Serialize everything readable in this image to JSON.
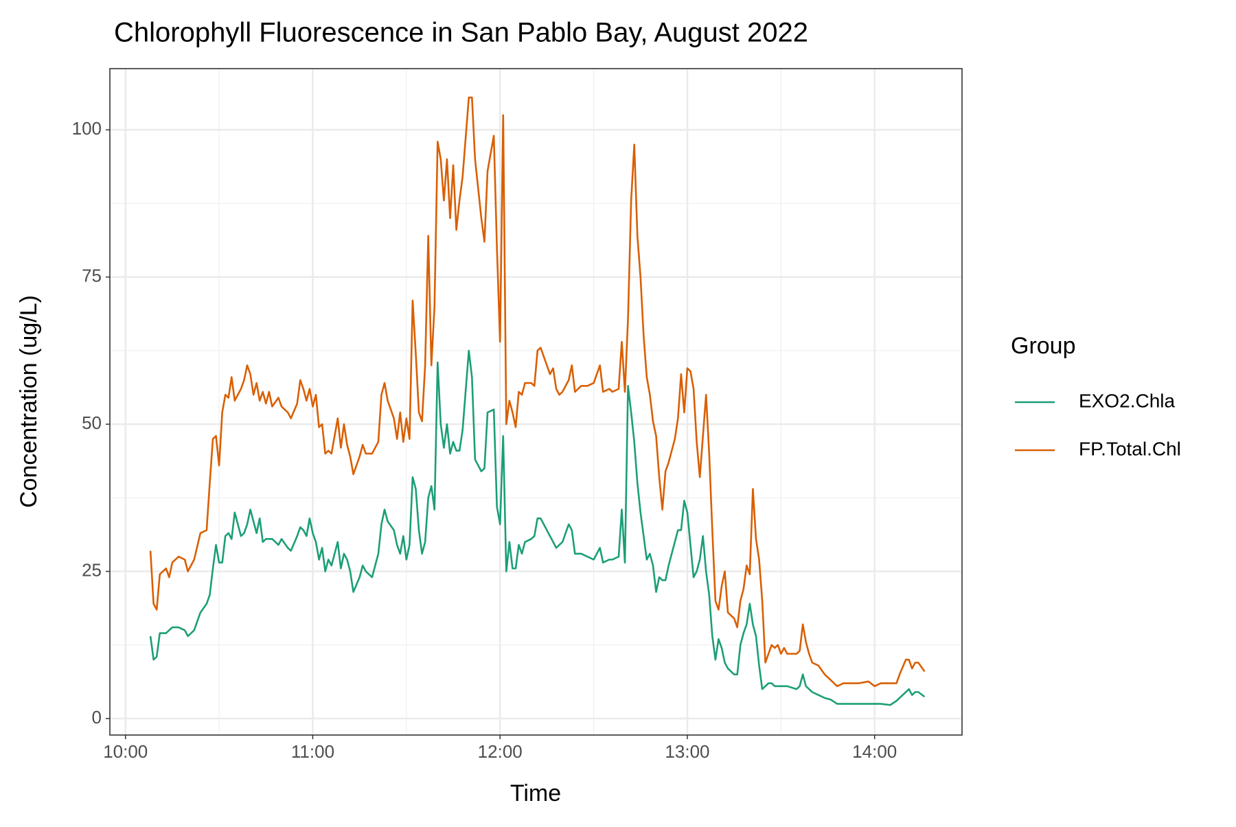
{
  "chart_data": {
    "type": "line",
    "title": "Chlorophyll Fluorescence in San Pablo Bay, August 2022",
    "x_label": "Time",
    "y_label": "Concentration (ug/L)",
    "legend_title": "Group",
    "legend_position": "right",
    "grid": true,
    "xlim": [
      "09:55",
      "14:28"
    ],
    "xticks": [
      "10:00",
      "11:00",
      "12:00",
      "13:00",
      "14:00"
    ],
    "ylim": [
      -2.8,
      110.4
    ],
    "yticks": [
      0,
      25,
      50,
      75,
      100
    ],
    "x": [
      "10:08",
      "10:09",
      "10:10",
      "10:11",
      "10:13",
      "10:14",
      "10:15",
      "10:17",
      "10:19",
      "10:20",
      "10:22",
      "10:24",
      "10:26",
      "10:27",
      "10:28",
      "10:29",
      "10:30",
      "10:31",
      "10:32",
      "10:33",
      "10:34",
      "10:35",
      "10:37",
      "10:38",
      "10:39",
      "10:40",
      "10:41",
      "10:42",
      "10:43",
      "10:44",
      "10:45",
      "10:46",
      "10:47",
      "10:49",
      "10:50",
      "10:52",
      "10:53",
      "10:55",
      "10:56",
      "10:57",
      "10:58",
      "10:59",
      "11:00",
      "11:01",
      "11:02",
      "11:03",
      "11:04",
      "11:05",
      "11:06",
      "11:07",
      "11:08",
      "11:09",
      "11:10",
      "11:11",
      "11:12",
      "11:13",
      "11:15",
      "11:16",
      "11:17",
      "11:19",
      "11:21",
      "11:22",
      "11:23",
      "11:24",
      "11:26",
      "11:27",
      "11:28",
      "11:29",
      "11:30",
      "11:31",
      "11:32",
      "11:33",
      "11:34",
      "11:35",
      "11:36",
      "11:37",
      "11:38",
      "11:39",
      "11:40",
      "11:41",
      "11:42",
      "11:43",
      "11:44",
      "11:45",
      "11:46",
      "11:47",
      "11:48",
      "11:50",
      "11:51",
      "11:52",
      "11:54",
      "11:55",
      "11:56",
      "11:58",
      "11:59",
      "12:00",
      "12:01",
      "12:02",
      "12:03",
      "12:04",
      "12:05",
      "12:06",
      "12:07",
      "12:08",
      "12:10",
      "12:11",
      "12:12",
      "12:13",
      "12:15",
      "12:16",
      "12:17",
      "12:18",
      "12:19",
      "12:20",
      "12:22",
      "12:23",
      "12:24",
      "12:26",
      "12:28",
      "12:30",
      "12:32",
      "12:33",
      "12:35",
      "12:36",
      "12:38",
      "12:39",
      "12:40",
      "12:41",
      "12:42",
      "12:43",
      "12:44",
      "12:45",
      "12:46",
      "12:47",
      "12:48",
      "12:49",
      "12:50",
      "12:51",
      "12:52",
      "12:53",
      "12:54",
      "12:56",
      "12:57",
      "12:58",
      "12:59",
      "13:00",
      "13:01",
      "13:02",
      "13:03",
      "13:04",
      "13:05",
      "13:06",
      "13:07",
      "13:08",
      "13:09",
      "13:10",
      "13:11",
      "13:12",
      "13:13",
      "13:15",
      "13:16",
      "13:17",
      "13:18",
      "13:19",
      "13:20",
      "13:21",
      "13:22",
      "13:23",
      "13:24",
      "13:25",
      "13:26",
      "13:27",
      "13:28",
      "13:29",
      "13:30",
      "13:31",
      "13:32",
      "13:35",
      "13:36",
      "13:37",
      "13:38",
      "13:39",
      "13:40",
      "13:42",
      "13:44",
      "13:46",
      "13:48",
      "13:50",
      "13:55",
      "13:58",
      "14:00",
      "14:02",
      "14:05",
      "14:07",
      "14:08",
      "14:10",
      "14:11",
      "14:12",
      "14:13",
      "14:14",
      "14:16"
    ],
    "series": [
      {
        "name": "EXO2.Chla",
        "color": "#1b9e77",
        "values": [
          14,
          10,
          10.5,
          14.5,
          14.5,
          15,
          15.5,
          15.5,
          15,
          14,
          15,
          18,
          19.5,
          21,
          25.5,
          29.5,
          26.5,
          26.5,
          31,
          31.5,
          30.5,
          35,
          31,
          31.5,
          33,
          35.5,
          33.5,
          31.5,
          34,
          30,
          30.5,
          30.5,
          30.5,
          29.5,
          30.5,
          29,
          28.5,
          31,
          32.5,
          32,
          31,
          34,
          31.5,
          30,
          27,
          29,
          25,
          27,
          26,
          28,
          30,
          25.5,
          28,
          27,
          25,
          21.5,
          24,
          26,
          25,
          24,
          28,
          33,
          35.5,
          33.5,
          32,
          29.5,
          28,
          31,
          27,
          29.5,
          41,
          39,
          32,
          28,
          30,
          37.5,
          39.5,
          35.5,
          60.5,
          50,
          46,
          50,
          45,
          47,
          45.5,
          45.5,
          49,
          62.5,
          58,
          44,
          42,
          42.5,
          52,
          52.5,
          36,
          33,
          48,
          25,
          30,
          25.5,
          25.5,
          29.5,
          28,
          30,
          30.5,
          31,
          34,
          34,
          32,
          31,
          30,
          29,
          29.5,
          30,
          33,
          32,
          28,
          28,
          27.5,
          27,
          29,
          26.5,
          27,
          27,
          27.5,
          35.5,
          26.5,
          56.5,
          52,
          47,
          40,
          35,
          31,
          27,
          28,
          26,
          21.5,
          24,
          23.5,
          23.5,
          26,
          30,
          32,
          32,
          37,
          35,
          29.5,
          24,
          25,
          27,
          31,
          25,
          21,
          14,
          10,
          13.5,
          12,
          9.5,
          8.5,
          7.5,
          7.5,
          12.5,
          14.5,
          16,
          19.5,
          16,
          14,
          9,
          5,
          5.5,
          6,
          6,
          5.5,
          5.5,
          5.5,
          5.5,
          5.5,
          5,
          5.5,
          7.5,
          5.5,
          5,
          4.5,
          4,
          3.5,
          3.2,
          2.5,
          2.5,
          2.5,
          2.5,
          2.5,
          2.5,
          2.3,
          3,
          3.5,
          4.5,
          5,
          4,
          4.5,
          4.5,
          3.7
        ]
      },
      {
        "name": "FP.Total.Chl",
        "color": "#d95f02",
        "values": [
          28.5,
          19.5,
          18.5,
          24.5,
          25.5,
          24,
          26.5,
          27.5,
          27,
          25,
          27,
          31.5,
          32,
          40,
          47.5,
          48,
          43,
          52,
          55,
          54.5,
          58,
          54,
          56,
          57.5,
          60,
          58.5,
          55,
          57,
          54,
          55.5,
          53.5,
          55.5,
          53,
          54.5,
          53,
          52,
          51,
          53.5,
          57.5,
          56,
          54,
          56,
          53,
          55,
          49.5,
          50,
          45,
          45.5,
          45,
          48,
          51,
          46,
          50,
          46.5,
          44.5,
          41.5,
          44.5,
          46.5,
          45,
          45,
          47,
          55,
          57,
          54,
          51,
          47.5,
          52,
          47,
          51,
          47.5,
          71,
          62,
          52,
          50.5,
          60,
          82,
          60,
          70,
          98,
          95,
          88,
          95,
          85,
          94,
          83,
          88,
          92,
          105.5,
          105.5,
          95,
          85,
          81,
          93,
          99,
          80,
          64,
          102.5,
          50,
          54,
          52,
          49.5,
          55.5,
          55,
          57,
          57,
          56.5,
          62.5,
          63,
          60,
          58.5,
          59.5,
          56,
          55,
          55.5,
          57.5,
          60,
          55.5,
          56.5,
          56.5,
          57,
          60,
          55.5,
          56,
          55.5,
          56,
          64,
          55.5,
          68,
          88,
          97.5,
          82,
          75,
          65,
          58,
          55,
          50.5,
          48,
          41,
          35.5,
          42,
          43.5,
          47.5,
          51,
          58.5,
          52,
          59.5,
          59,
          56,
          47,
          41,
          48,
          55,
          45,
          32,
          20,
          18.5,
          22.5,
          25,
          18,
          17,
          15.5,
          20,
          22,
          26,
          24.5,
          39,
          30.5,
          27,
          20,
          9.5,
          11,
          12.5,
          12,
          12.5,
          11,
          12,
          11,
          11,
          11.5,
          16,
          13,
          11,
          9.5,
          9,
          7.5,
          6.5,
          5.5,
          6,
          6,
          6.3,
          5.5,
          6,
          6,
          6,
          7.5,
          10,
          10,
          8.5,
          9.5,
          9.5,
          8
        ]
      }
    ]
  }
}
